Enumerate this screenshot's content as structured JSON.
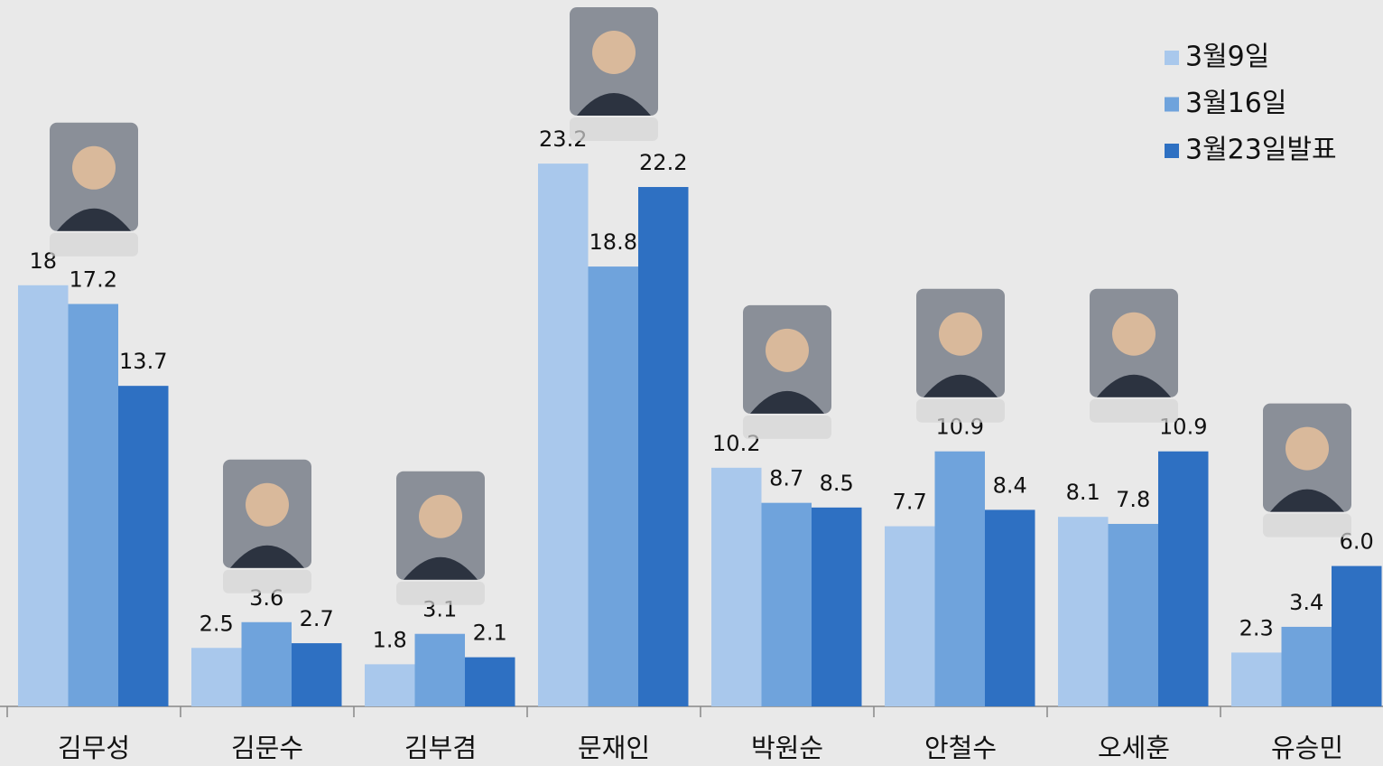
{
  "chart_data": {
    "type": "bar",
    "categories": [
      "김무성",
      "김문수",
      "김부겸",
      "문재인",
      "박원순",
      "안철수",
      "오세훈",
      "유승민"
    ],
    "series": [
      {
        "name": "3월9일",
        "color": "#a9c8ec",
        "values": [
          18,
          2.5,
          1.8,
          23.2,
          10.2,
          7.7,
          8.1,
          2.3
        ]
      },
      {
        "name": "3월16일",
        "color": "#6fa3dc",
        "values": [
          17.2,
          3.6,
          3.1,
          18.8,
          8.7,
          10.9,
          7.8,
          3.4
        ]
      },
      {
        "name": "3월23일발표",
        "color": "#2e70c2",
        "values": [
          13.7,
          2.7,
          2.1,
          22.2,
          8.5,
          8.4,
          10.9,
          6.0
        ],
        "value_labels": [
          "13.7",
          "2.7",
          "2.1",
          "22.2",
          "8.5",
          "8.4",
          "10.9",
          "6.0"
        ]
      }
    ],
    "ylim": [
      0,
      30
    ],
    "legend": "top-right"
  }
}
